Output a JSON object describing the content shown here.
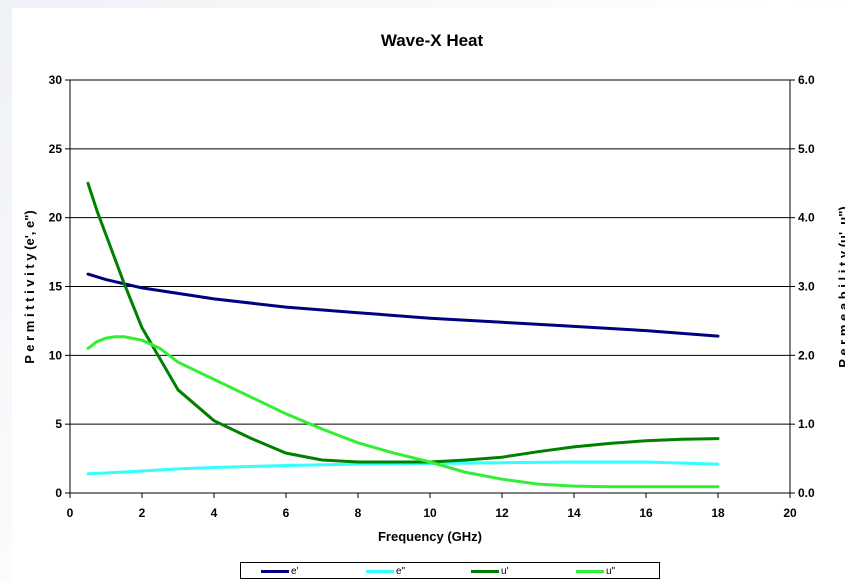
{
  "chart_data": {
    "type": "line",
    "title": "Wave-X Heat",
    "xlabel": "Frequency (GHz)",
    "ylabel_left": "P e r m i t t i v i t y (e', e\")",
    "ylabel_right": "P e r m e a b i l i t y (u', u\")",
    "xlim": [
      0,
      20
    ],
    "ylim_left": [
      0,
      30
    ],
    "ylim_right": [
      0,
      6
    ],
    "x_ticks": [
      "0",
      "2",
      "4",
      "6",
      "8",
      "10",
      "12",
      "14",
      "16",
      "18",
      "20"
    ],
    "y_left_ticks": [
      "0",
      "5",
      "10",
      "15",
      "20",
      "25",
      "30"
    ],
    "y_right_ticks": [
      "0.0",
      "1.0",
      "2.0",
      "3.0",
      "4.0",
      "5.0",
      "6.0"
    ],
    "grid": "horizontal",
    "legend_position": "bottom",
    "series": [
      {
        "name": "e'",
        "axis": "left",
        "color": "#000080",
        "x": [
          0.5,
          1,
          2,
          3,
          4,
          6,
          8,
          10,
          12,
          14,
          16,
          18
        ],
        "values": [
          15.9,
          15.5,
          14.9,
          14.5,
          14.1,
          13.5,
          13.1,
          12.7,
          12.4,
          12.1,
          11.8,
          11.4
        ]
      },
      {
        "name": "e\"",
        "axis": "left",
        "color": "#33ffff",
        "x": [
          0.5,
          1,
          2,
          3,
          4,
          6,
          8,
          10,
          12,
          14,
          16,
          18
        ],
        "values": [
          1.4,
          1.45,
          1.6,
          1.75,
          1.85,
          2.0,
          2.1,
          2.15,
          2.2,
          2.25,
          2.25,
          2.1
        ]
      },
      {
        "name": "u'",
        "axis": "right",
        "color": "#008000",
        "x": [
          0.5,
          0.75,
          1,
          1.5,
          2,
          2.5,
          3,
          4,
          5,
          6,
          7,
          8,
          9,
          10,
          11,
          12,
          13,
          14,
          15,
          16,
          17,
          18
        ],
        "values": [
          4.5,
          4.1,
          3.75,
          3.05,
          2.4,
          1.95,
          1.5,
          1.05,
          0.8,
          0.58,
          0.48,
          0.45,
          0.45,
          0.45,
          0.48,
          0.52,
          0.6,
          0.67,
          0.72,
          0.76,
          0.78,
          0.79
        ]
      },
      {
        "name": "u\"",
        "axis": "right",
        "color": "#33ee33",
        "x": [
          0.5,
          0.75,
          1,
          1.25,
          1.5,
          2,
          2.5,
          3,
          4,
          5,
          6,
          7,
          8,
          9,
          10,
          11,
          12,
          13,
          14,
          15,
          16,
          17,
          18
        ],
        "values": [
          2.1,
          2.2,
          2.25,
          2.27,
          2.27,
          2.22,
          2.1,
          1.9,
          1.65,
          1.4,
          1.15,
          0.93,
          0.73,
          0.58,
          0.45,
          0.3,
          0.2,
          0.13,
          0.1,
          0.09,
          0.09,
          0.09,
          0.09
        ]
      }
    ]
  }
}
